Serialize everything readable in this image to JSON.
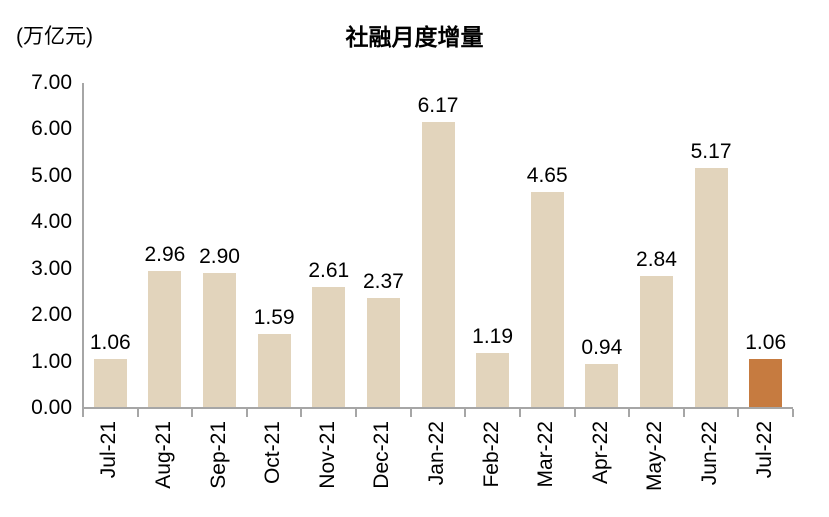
{
  "chart": {
    "title": "社融月度增量",
    "unit_label": "(万亿元)"
  },
  "chart_data": {
    "type": "bar",
    "title": "社融月度增量",
    "ylabel_unit": "(万亿元)",
    "categories": [
      "Jul-21",
      "Aug-21",
      "Sep-21",
      "Oct-21",
      "Nov-21",
      "Dec-21",
      "Jan-22",
      "Feb-22",
      "Mar-22",
      "Apr-22",
      "May-22",
      "Jun-22",
      "Jul-22"
    ],
    "values": [
      1.06,
      2.96,
      2.9,
      1.59,
      2.61,
      2.37,
      6.17,
      1.19,
      4.65,
      0.94,
      2.84,
      5.17,
      1.06
    ],
    "value_labels": [
      "1.06",
      "2.96",
      "2.90",
      "1.59",
      "2.61",
      "2.37",
      "6.17",
      "1.19",
      "4.65",
      "0.94",
      "2.84",
      "5.17",
      "1.06"
    ],
    "ylim": [
      0,
      7
    ],
    "ytick_step": 1,
    "ytick_labels": [
      "0.00",
      "1.00",
      "2.00",
      "3.00",
      "4.00",
      "5.00",
      "6.00",
      "7.00"
    ],
    "grid": false,
    "legend_position": "none",
    "bar_color": "#E2D4BC",
    "highlight_color": "#C67B40",
    "highlight_index": 12,
    "axis_color": "#A6A6A6",
    "text_color": "#000000"
  }
}
